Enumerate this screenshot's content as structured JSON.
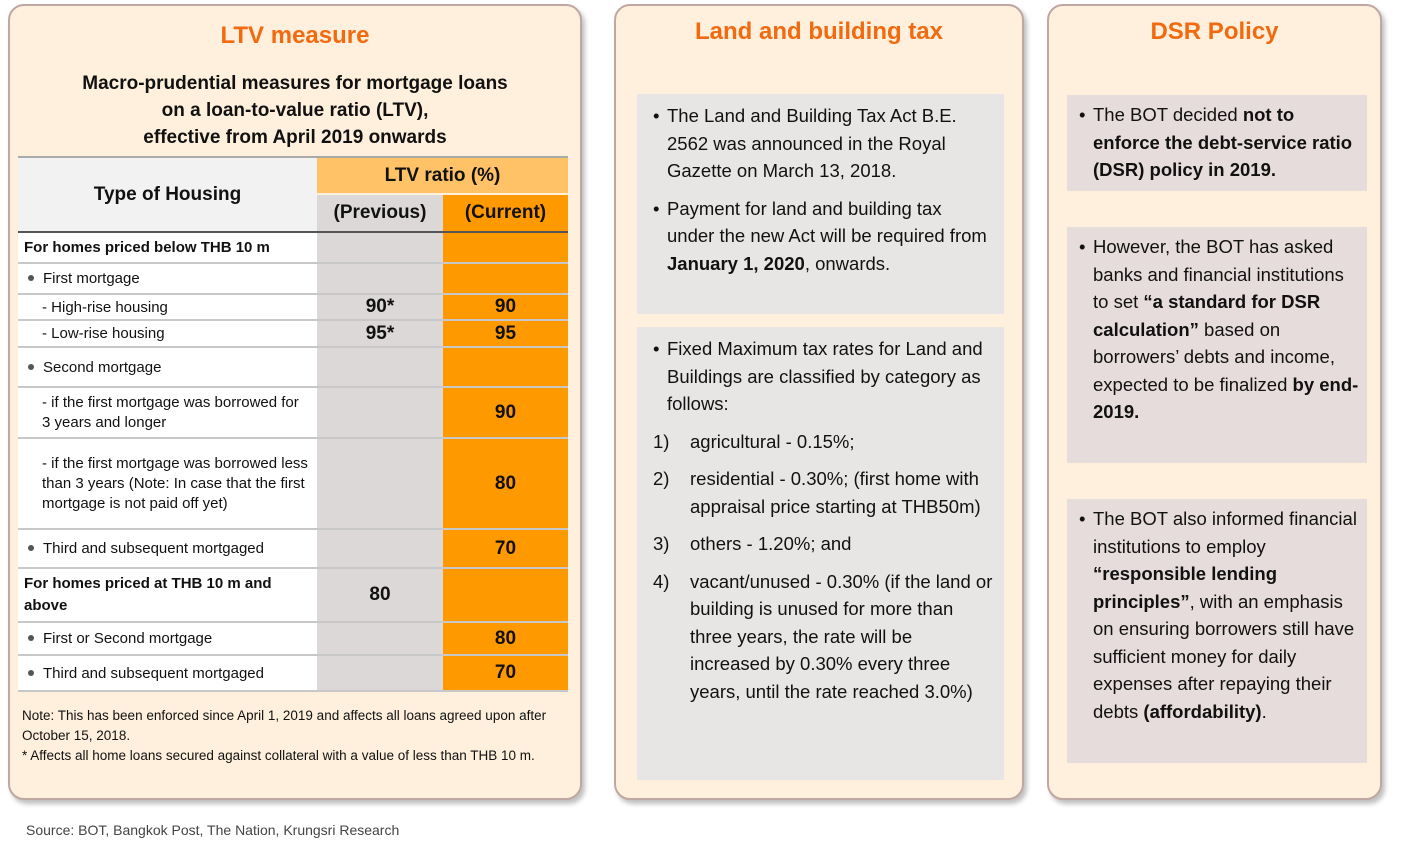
{
  "ltv": {
    "title": "LTV measure",
    "subtitle": [
      "Macro-prudential measures for mortgage loans",
      "on a loan-to-value ratio (LTV),",
      "effective from April 2019 onwards"
    ],
    "header": {
      "type": "Type of Housing",
      "ratio": "LTV ratio (%)",
      "previous": "(Previous)",
      "current": "(Current)"
    },
    "rows": [
      {
        "label": "For homes priced below  THB 10 m",
        "prev": "",
        "cur": ""
      },
      {
        "label": "First mortgage",
        "prev": "",
        "cur": ""
      },
      {
        "label": "- High-rise housing",
        "prev": "90*",
        "cur": "90"
      },
      {
        "label": "- Low-rise housing",
        "prev": "95*",
        "cur": "95"
      },
      {
        "label": "Second mortgage",
        "prev": "",
        "cur": ""
      },
      {
        "label": "- if the first mortgage was borrowed for 3 years and longer",
        "prev": "",
        "cur": "90"
      },
      {
        "label": "- if the first mortgage was borrowed less than 3 years (Note: In case that the first mortgage is not paid off yet)",
        "prev": "",
        "cur": "80"
      },
      {
        "label": "Third and subsequent mortgaged",
        "prev": "",
        "cur": "70"
      },
      {
        "label": "For homes priced at  THB 10 m and above",
        "prev": "80",
        "cur": ""
      },
      {
        "label": "First or Second mortgage",
        "prev": "",
        "cur": "80"
      },
      {
        "label": "Third and subsequent mortgaged",
        "prev": "",
        "cur": "70"
      }
    ],
    "note": "Note: This has been enforced since April 1, 2019 and affects all loans agreed upon after October 15, 2018.",
    "footnote": "* Affects all home loans secured against collateral with a value of less than THB 10 m."
  },
  "land": {
    "title": "Land and building tax",
    "box1": {
      "b1": "The Land and Building Tax Act B.E. 2562 was announced in the Royal Gazette on March 13, 2018.",
      "b2_pre": "Payment for land and building tax under the new Act will be required from ",
      "b2_bold": "January 1, 2020",
      ",b2_post": ", onwards.",
      "b2_end": ", onwards."
    },
    "box2": {
      "intro": "Fixed Maximum tax rates for Land and Buildings are classified by category as follows:",
      "items": [
        {
          "n": "1)",
          "t": "agricultural - 0.15%;"
        },
        {
          "n": "2)",
          "t": "residential -  0.30%; (first home with appraisal price starting at THB50m)"
        },
        {
          "n": "3)",
          "t": "others - 1.20%;   and"
        },
        {
          "n": "4)",
          "t": "vacant/unused - 0.30% (if the land or building is unused for more than three years, the rate will be increased by 0.30% every three years, until the rate reached 3.0%)"
        }
      ]
    }
  },
  "dsr": {
    "title": "DSR Policy",
    "box1": {
      "pre": "The BOT decided ",
      "bold": "not to enforce the debt-service ratio (DSR)  policy in 2019."
    },
    "box2": {
      "pre": "However, the BOT has asked banks and financial institutions to set ",
      "bold1": "“a standard for DSR calculation”",
      "mid": " based on borrowers’ debts and income, expected to be finalized ",
      "bold2": "by end-2019."
    },
    "box3": {
      "pre": "The BOT also informed financial institutions to employ ",
      "bold1": "“responsible lending principles”",
      "mid": ", with an emphasis on ensuring borrowers still have sufficient money for daily expenses after repaying their debts ",
      "bold2": "(affordability)",
      "end": "."
    }
  },
  "source": "Source: BOT, Bangkok Post, The Nation, Krungsri Research"
}
